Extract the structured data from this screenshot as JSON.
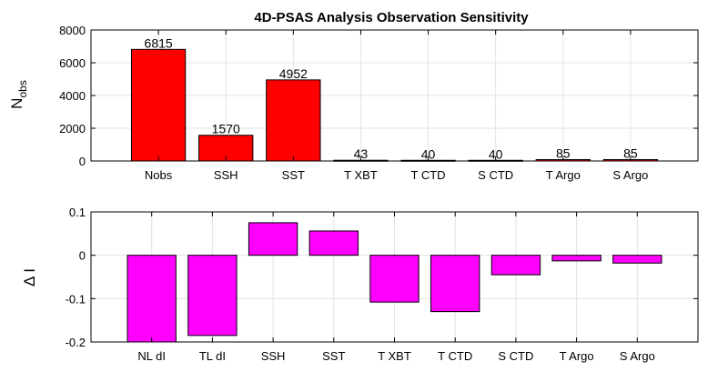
{
  "chart_data": [
    {
      "type": "bar",
      "title": "4D-PSAS Analysis Observation Sensitivity",
      "ylabel": "N",
      "ylabel_subscript": "obs",
      "xlabel": "",
      "categories": [
        "Nobs",
        "SSH",
        "SST",
        "T XBT",
        "T CTD",
        "S CTD",
        "T Argo",
        "S Argo"
      ],
      "values": [
        6815,
        1570,
        4952,
        43,
        40,
        40,
        85,
        85
      ],
      "data_labels": [
        "6815",
        "1570",
        "4952",
        "43",
        "40",
        "40",
        "85",
        "85"
      ],
      "ylim": [
        0,
        8000
      ],
      "yticks": [
        0,
        2000,
        4000,
        6000,
        8000
      ],
      "ytick_labels": [
        "0",
        "2000",
        "4000",
        "6000",
        "8000"
      ],
      "grid": true,
      "bar_color": "#ff0000"
    },
    {
      "type": "bar",
      "title": "",
      "ylabel": "Δ I",
      "xlabel": "",
      "categories": [
        "NL dI",
        "TL dI",
        "SSH",
        "SST",
        "T XBT",
        "T CTD",
        "S CTD",
        "T Argo",
        "S Argo"
      ],
      "values": [
        -0.2,
        -0.185,
        0.075,
        0.056,
        -0.108,
        -0.13,
        -0.045,
        -0.013,
        -0.018
      ],
      "ylim": [
        -0.2,
        0.1
      ],
      "yticks": [
        -0.2,
        -0.1,
        0,
        0.1
      ],
      "ytick_labels": [
        "-0.2",
        "-0.1",
        "0",
        "0.1"
      ],
      "grid": true,
      "bar_color": "#ff00ff"
    }
  ]
}
